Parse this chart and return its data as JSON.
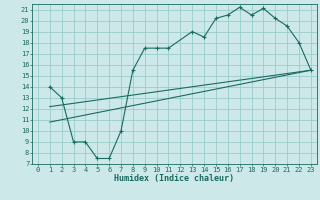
{
  "xlabel": "Humidex (Indice chaleur)",
  "bg_color": "#cce8e8",
  "grid_color": "#99cccc",
  "line_color": "#1a6b60",
  "xlim": [
    -0.5,
    23.5
  ],
  "ylim": [
    7,
    21.5
  ],
  "xticks": [
    0,
    1,
    2,
    3,
    4,
    5,
    6,
    7,
    8,
    9,
    10,
    11,
    12,
    13,
    14,
    15,
    16,
    17,
    18,
    19,
    20,
    21,
    22,
    23
  ],
  "yticks": [
    7,
    8,
    9,
    10,
    11,
    12,
    13,
    14,
    15,
    16,
    17,
    18,
    19,
    20,
    21
  ],
  "line1_x": [
    1,
    2,
    3,
    4,
    5,
    6,
    7,
    8,
    9,
    10,
    11,
    13,
    14,
    15,
    16,
    17,
    18,
    19,
    20,
    21,
    22,
    23
  ],
  "line1_y": [
    14,
    13,
    9,
    9,
    7.5,
    7.5,
    10,
    15.5,
    17.5,
    17.5,
    17.5,
    19,
    18.5,
    20.2,
    20.5,
    21.2,
    20.5,
    21.1,
    20.2,
    19.5,
    18.0,
    15.5
  ],
  "line2_x": [
    1,
    23
  ],
  "line2_y": [
    10.8,
    15.5
  ],
  "line3_x": [
    1,
    23
  ],
  "line3_y": [
    12.2,
    15.5
  ],
  "tick_fontsize": 5.0,
  "xlabel_fontsize": 6.0
}
